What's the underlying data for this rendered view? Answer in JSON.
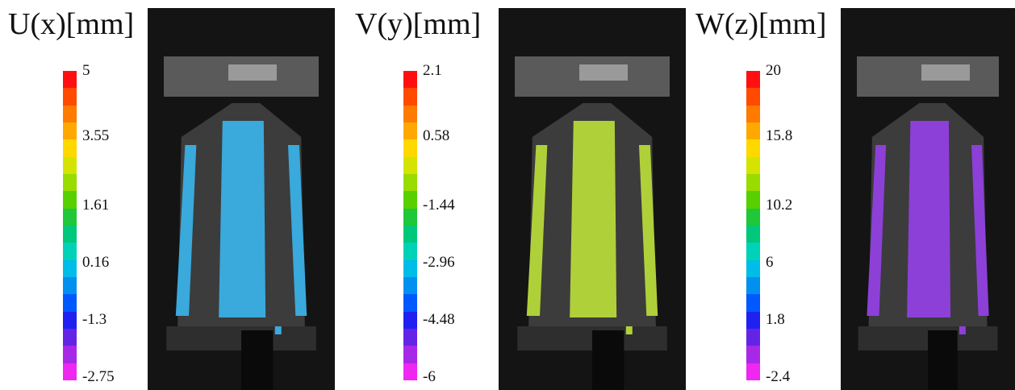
{
  "panels": [
    {
      "title": "U(x)[mm]",
      "ticks": [
        "5",
        "3.55",
        "1.61",
        "0.16",
        "-1.3",
        "-2.75"
      ]
    },
    {
      "title": "V(y)[mm]",
      "ticks": [
        "2.1",
        "0.58",
        "-1.44",
        "-2.96",
        "-4.48",
        "-6"
      ]
    },
    {
      "title": "W(z)[mm]",
      "ticks": [
        "20",
        "15.8",
        "10.2",
        "6",
        "1.8",
        "-2.4"
      ]
    }
  ]
}
